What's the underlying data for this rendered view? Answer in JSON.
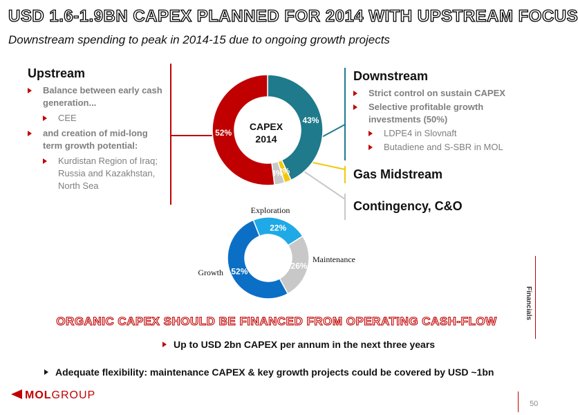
{
  "title": "USD 1.6-1.9BN CAPEX PLANNED FOR 2014 WITH UPSTREAM FOCUS",
  "subtitle": "Downstream spending to peak in 2014-15 due to ongoing growth projects",
  "upstream": {
    "heading": "Upstream",
    "b1": "Balance between early cash generation...",
    "s1": "CEE",
    "b2": "and creation of mid-long term growth potential:",
    "s2": "Kurdistan Region of Iraq; Russia and Kazakhstan, North Sea"
  },
  "downstream": {
    "heading": "Downstream",
    "b1": "Strict control on sustain CAPEX",
    "b2": "Selective profitable growth investments (50%)",
    "s1": "LDPE4 in Slovnaft",
    "s2": "Butadiene and S-SBR in MOL"
  },
  "gas_midstream": "Gas Midstream",
  "contingency": "Contingency, C&O",
  "colors": {
    "upstream": "#c00000",
    "downstream": "#1f7a8c",
    "gas": "#f2c80f",
    "contingency": "#c8c8c8",
    "exploration": "#1fa9e6",
    "maintenance": "#c8c8c8",
    "growth": "#0b6fc6",
    "accent": "#c00000"
  },
  "chart_data": [
    {
      "type": "pie",
      "center_label": [
        "CAPEX",
        "2014"
      ],
      "categories": [
        "Downstream",
        "Gas Midstream",
        "Contingency, C&O",
        "Upstream"
      ],
      "values": [
        43,
        2,
        3,
        52
      ],
      "labels": [
        "43%",
        "2%",
        "3%",
        "52%"
      ]
    },
    {
      "type": "pie",
      "categories": [
        "Exploration",
        "Maintenance",
        "Growth"
      ],
      "values": [
        22,
        26,
        52
      ],
      "labels": [
        "22%",
        "26%",
        "52%"
      ]
    }
  ],
  "organic": "ORGANIC CAPEX SHOULD BE FINANCED FROM OPERATING CASH-FLOW",
  "point1": "Up to USD 2bn CAPEX per annum in the next three years",
  "point2": "Adequate flexibility: maintenance CAPEX & key growth projects could be covered by USD ~1bn",
  "logo": {
    "mol": "MOL",
    "group": "GROUP"
  },
  "side_label": "Financials",
  "page_number": "50"
}
